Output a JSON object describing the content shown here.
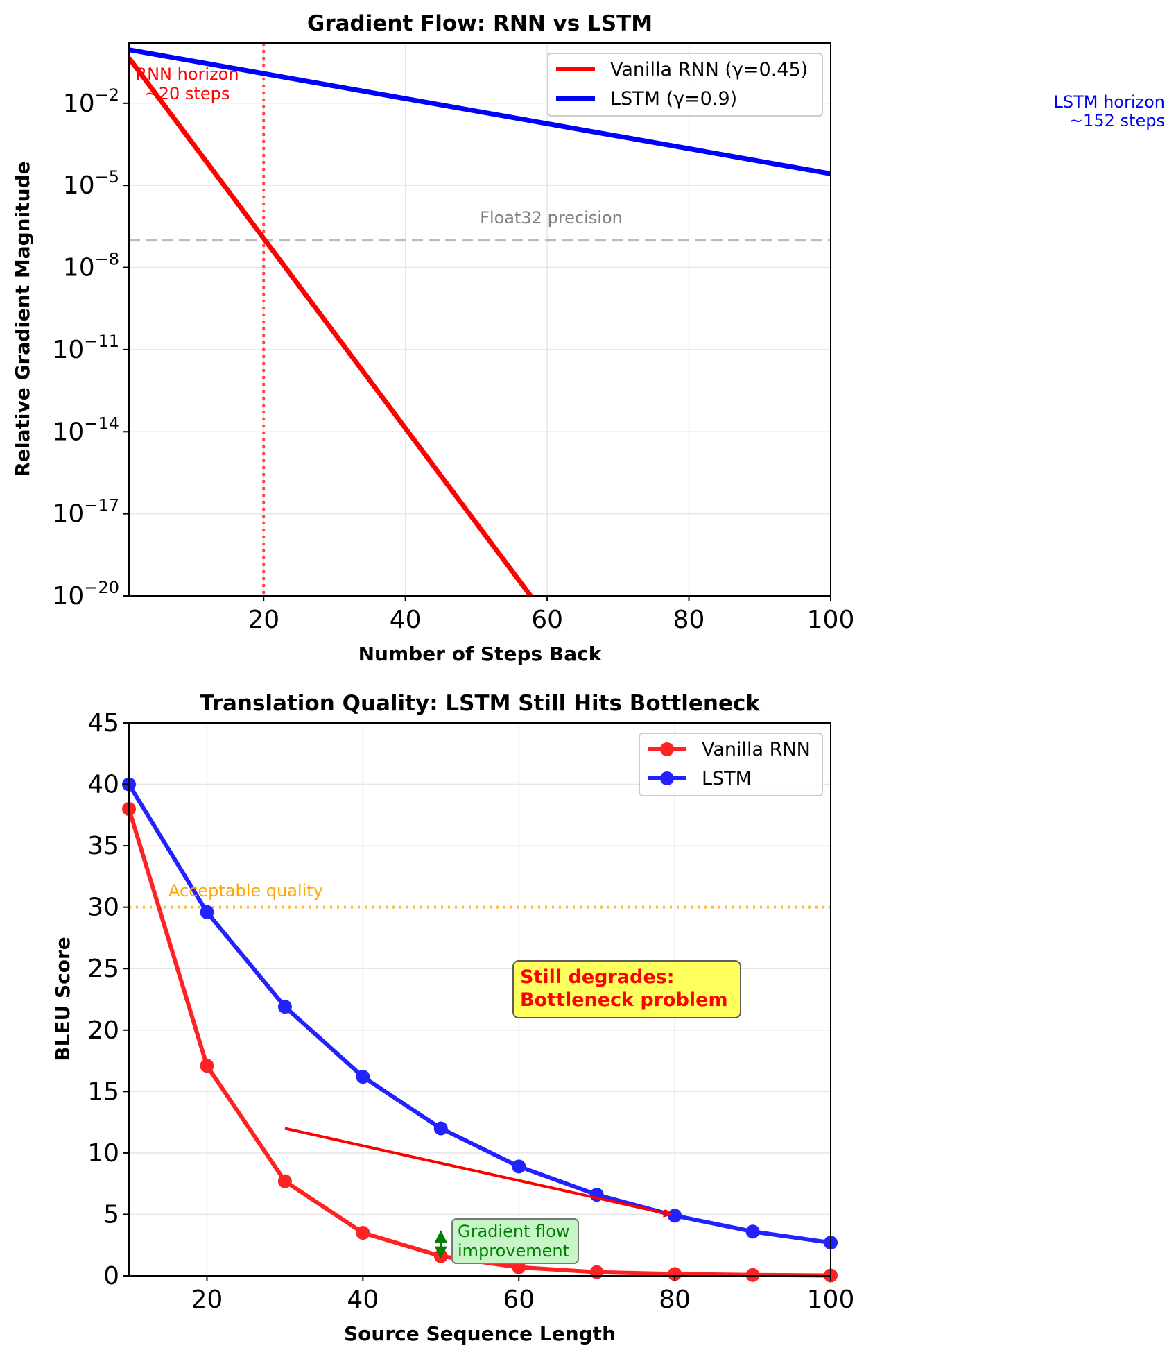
{
  "chart_data": [
    {
      "type": "line",
      "title": "Gradient Flow: RNN vs LSTM",
      "xlabel": "Number of Steps Back",
      "ylabel": "Relative Gradient Magnitude",
      "xlim": [
        1,
        100
      ],
      "ylog": true,
      "ylim_exp": [
        -20,
        0.2
      ],
      "xticks": [
        20,
        40,
        60,
        80,
        100
      ],
      "yticks_exp": [
        -2,
        -5,
        -8,
        -11,
        -14,
        -17,
        -20
      ],
      "grid": true,
      "legend_position": "top-right",
      "series": [
        {
          "name": "Vanilla RNN (γ=0.45)",
          "color": "#ff0000",
          "gamma": 0.45,
          "x_start": 1,
          "x_end": 100
        },
        {
          "name": "LSTM (γ=0.9)",
          "color": "#0000ff",
          "gamma": 0.9,
          "x_start": 1,
          "x_end": 100
        }
      ],
      "reference_lines": [
        {
          "orientation": "horizontal",
          "y": 1e-07,
          "label": "Float32 precision",
          "color": "#bbbbbb"
        },
        {
          "orientation": "vertical",
          "x": 20,
          "color": "#ff0000"
        }
      ],
      "annotations": [
        {
          "text_lines": [
            "RNN horizon",
            "~20 steps"
          ],
          "color": "#ff0000"
        },
        {
          "text_lines": [
            "LSTM horizon",
            "~152 steps"
          ],
          "color": "#0000ff"
        }
      ]
    },
    {
      "type": "line",
      "title": "Translation Quality: LSTM Still Hits Bottleneck",
      "xlabel": "Source Sequence Length",
      "ylabel": "BLEU Score",
      "xlim": [
        10,
        100
      ],
      "ylim": [
        0,
        45
      ],
      "xticks": [
        20,
        40,
        60,
        80,
        100
      ],
      "yticks": [
        0,
        5,
        10,
        15,
        20,
        25,
        30,
        35,
        40,
        45
      ],
      "grid": true,
      "legend_position": "top-right",
      "x": [
        10,
        20,
        30,
        40,
        50,
        60,
        70,
        80,
        90,
        100
      ],
      "series": [
        {
          "name": "Vanilla RNN",
          "color": "#ff2222",
          "values": [
            38,
            17.1,
            7.7,
            3.5,
            1.6,
            0.7,
            0.3,
            0.15,
            0.07,
            0.03
          ]
        },
        {
          "name": "LSTM",
          "color": "#2222ff",
          "values": [
            40,
            29.6,
            21.9,
            16.2,
            12.0,
            8.9,
            6.6,
            4.9,
            3.6,
            2.7
          ]
        }
      ],
      "reference_lines": [
        {
          "orientation": "horizontal",
          "y": 30,
          "label": "Acceptable quality",
          "color": "#ffa500"
        }
      ],
      "annotations": [
        {
          "text_lines": [
            "Still degrades:",
            "Bottleneck problem"
          ],
          "color": "#ff0000",
          "box_color": "#ffff55"
        },
        {
          "text_lines": [
            "Gradient flow",
            "improvement"
          ],
          "color": "#008000",
          "box_color": "#c8f5c8"
        }
      ],
      "arrows": [
        {
          "from": [
            30,
            12
          ],
          "to": [
            80,
            5
          ],
          "color": "#ff0000"
        },
        {
          "x": 50,
          "from_y": 1.6,
          "to_y": 3.5,
          "color": "#008000",
          "double_headed": true
        }
      ]
    }
  ]
}
